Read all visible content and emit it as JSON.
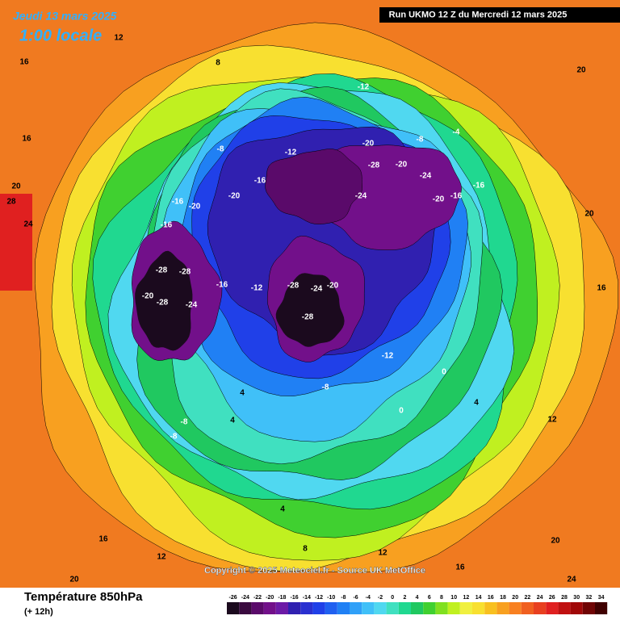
{
  "header": {
    "date": "Jeudi 13 mars 2025",
    "time": "1:00 locale",
    "run": "Run UKMO 12 Z du Mercredi 12 mars 2025"
  },
  "copyright": "Copyright © 2025 Meteociel.fr - Source UK MetOffice",
  "footer": {
    "title": "Température 850hPa",
    "step": "(+ 12h)"
  },
  "map_labels": [
    -28,
    -28,
    -20,
    -28,
    -24,
    -16,
    -12,
    -28,
    -24,
    -20,
    -28,
    -20,
    -28,
    -24,
    -20,
    -24,
    -20,
    -16,
    -16,
    -12,
    -8,
    -4,
    -12,
    -16,
    -20,
    -20,
    -16,
    -16,
    -8,
    -12,
    -8,
    0,
    4,
    0,
    4,
    4,
    -8,
    -8,
    4,
    8,
    12,
    16,
    20,
    24,
    20,
    20,
    16,
    12,
    12,
    16,
    20,
    28,
    24,
    20,
    16,
    12,
    8,
    16
  ],
  "legend": {
    "labels": [
      -26,
      -24,
      -22,
      -20,
      -18,
      -16,
      -14,
      -12,
      -10,
      -8,
      -6,
      -4,
      -2,
      0,
      2,
      4,
      6,
      8,
      10,
      12,
      14,
      16,
      18,
      20,
      22,
      24,
      26,
      28,
      30,
      32,
      34
    ],
    "colors": [
      "#1b0a1e",
      "#3a0a3f",
      "#5a0a6a",
      "#72108a",
      "#6c1aa6",
      "#3020b0",
      "#2a30d0",
      "#2040e8",
      "#2060f0",
      "#2080f4",
      "#30a0f8",
      "#40c0f8",
      "#50d8f0",
      "#40e0c0",
      "#20d890",
      "#20c860",
      "#40d030",
      "#80e020",
      "#c0f020",
      "#f0f040",
      "#f8e030",
      "#f8c020",
      "#f8a020",
      "#f88020",
      "#f06020",
      "#e84020",
      "#e02020",
      "#c01010",
      "#a00808",
      "#700404",
      "#400000"
    ]
  }
}
